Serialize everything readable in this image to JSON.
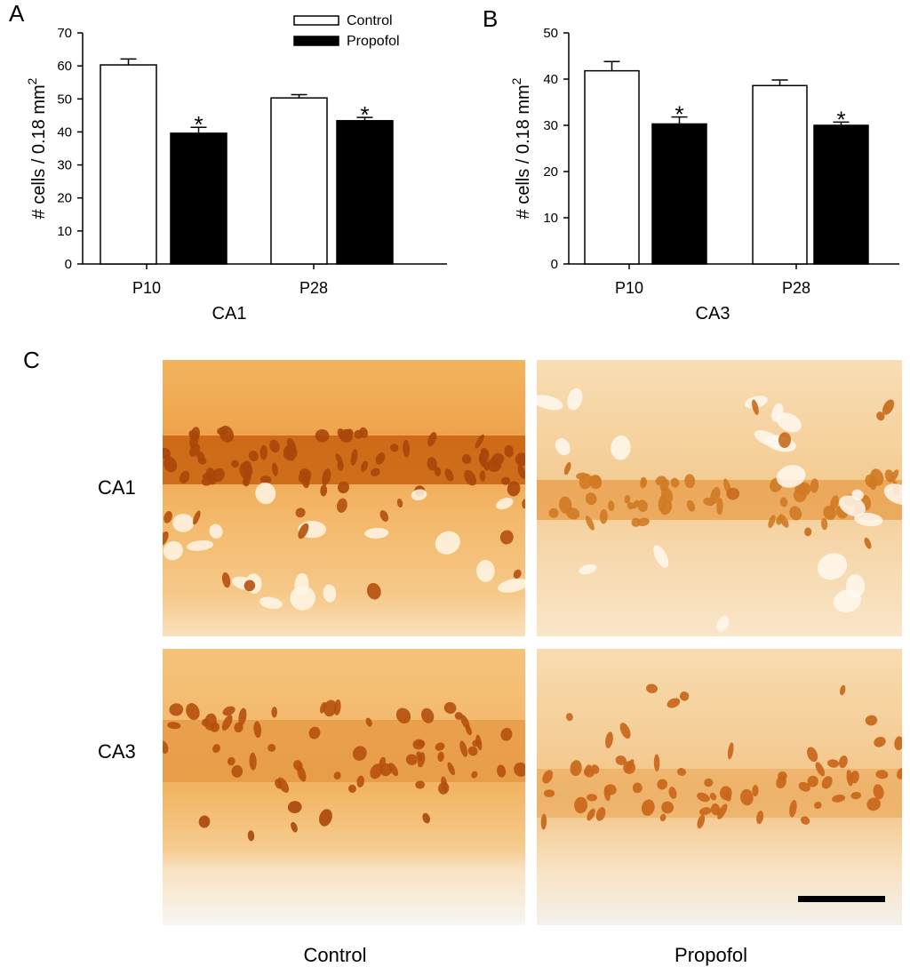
{
  "panels": {
    "a": "A",
    "b": "B",
    "c": "C"
  },
  "legend": {
    "control": "Control",
    "propofol": "Propofol"
  },
  "series_colors": {
    "control": "#ffffff",
    "propofol": "#000000"
  },
  "chart_data": [
    {
      "panel": "A",
      "type": "bar",
      "categories": [
        "P10",
        "P28"
      ],
      "xlabel": "CA1",
      "ylabel": "# cells / 0.18 mm",
      "ylabel_superscript": "2",
      "ylim": [
        0,
        70
      ],
      "yticks": [
        0,
        10,
        20,
        30,
        40,
        50,
        60,
        70
      ],
      "grid": false,
      "legend_position": "top-right",
      "series": [
        {
          "name": "Control",
          "values": [
            60.3,
            50.3
          ],
          "errors": [
            1.8,
            1.0
          ]
        },
        {
          "name": "Propofol",
          "values": [
            39.6,
            43.4
          ],
          "errors": [
            1.8,
            1.0
          ]
        }
      ],
      "significance": [
        {
          "category": "P10",
          "series": "Propofol",
          "mark": "*"
        },
        {
          "category": "P28",
          "series": "Propofol",
          "mark": "*"
        }
      ]
    },
    {
      "panel": "B",
      "type": "bar",
      "categories": [
        "P10",
        "P28"
      ],
      "xlabel": "CA3",
      "ylabel": "# cells / 0.18 mm",
      "ylabel_superscript": "2",
      "ylim": [
        0,
        50
      ],
      "yticks": [
        0,
        10,
        20,
        30,
        40,
        50
      ],
      "grid": false,
      "series": [
        {
          "name": "Control",
          "values": [
            41.8,
            38.6
          ],
          "errors": [
            2.0,
            1.2
          ]
        },
        {
          "name": "Propofol",
          "values": [
            30.3,
            30.0
          ],
          "errors": [
            1.5,
            0.7
          ]
        }
      ],
      "significance": [
        {
          "category": "P10",
          "series": "Propofol",
          "mark": "*"
        },
        {
          "category": "P28",
          "series": "Propofol",
          "mark": "*"
        }
      ]
    }
  ],
  "micrographs": {
    "rows": [
      "CA1",
      "CA3"
    ],
    "columns": [
      "Control",
      "Propofol"
    ]
  }
}
